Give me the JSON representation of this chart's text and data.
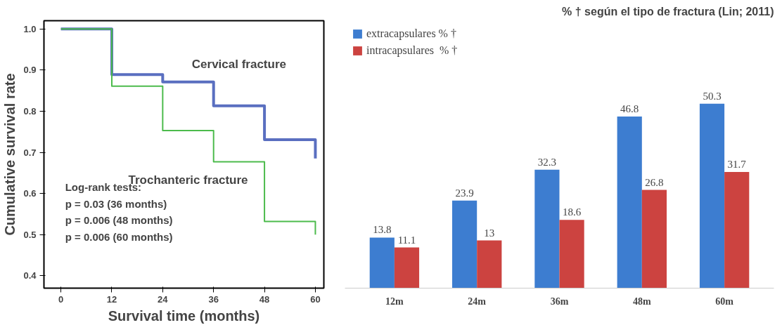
{
  "chart_data": [
    {
      "type": "step",
      "xlabel": "Survival time (months)",
      "ylabel": "Cumulative survival rate",
      "x": [
        0,
        12,
        24,
        36,
        48,
        60,
        60
      ],
      "series": [
        {
          "name": "Cervical fracture",
          "color": "#5a6fc0",
          "values": [
            1.0,
            0.889,
            0.871,
            0.813,
            0.731,
            0.731,
            0.685
          ]
        },
        {
          "name": "Trochanteric fracture",
          "color": "#4cbb4c",
          "values": [
            1.0,
            0.861,
            0.753,
            0.677,
            0.532,
            0.532,
            0.5
          ]
        }
      ],
      "xlim": [
        -4,
        62
      ],
      "ylim": [
        0.37,
        1.02
      ],
      "xticks": [
        0,
        12,
        24,
        36,
        48,
        60
      ],
      "yticks": [
        0.4,
        0.5,
        0.6,
        0.7,
        0.8,
        0.9,
        {
          "value": 1.0,
          "label": "1.0"
        }
      ],
      "annotations": [
        "Log-rank tests:",
        "p = 0.03 (36 months)",
        "p = 0.006 (48 months)",
        "p = 0.006 (60 months)"
      ],
      "grid": false,
      "legend": false
    },
    {
      "type": "bar",
      "title": "% † según el tipo de fractura (Lin; 2011)",
      "categories": [
        "12m",
        "24m",
        "36m",
        "48m",
        "60m"
      ],
      "series": [
        {
          "name": "extracapsulares % †",
          "color": "#3d7dd0",
          "values": [
            13.8,
            23.9,
            32.3,
            46.8,
            50.3
          ]
        },
        {
          "name": "intracapsulares  % †",
          "color": "#cc4340",
          "values": [
            11.1,
            13,
            18.6,
            26.8,
            31.7
          ]
        }
      ],
      "data_labels": true,
      "legend": "top left",
      "grid": false,
      "tick_labels": "x"
    }
  ]
}
